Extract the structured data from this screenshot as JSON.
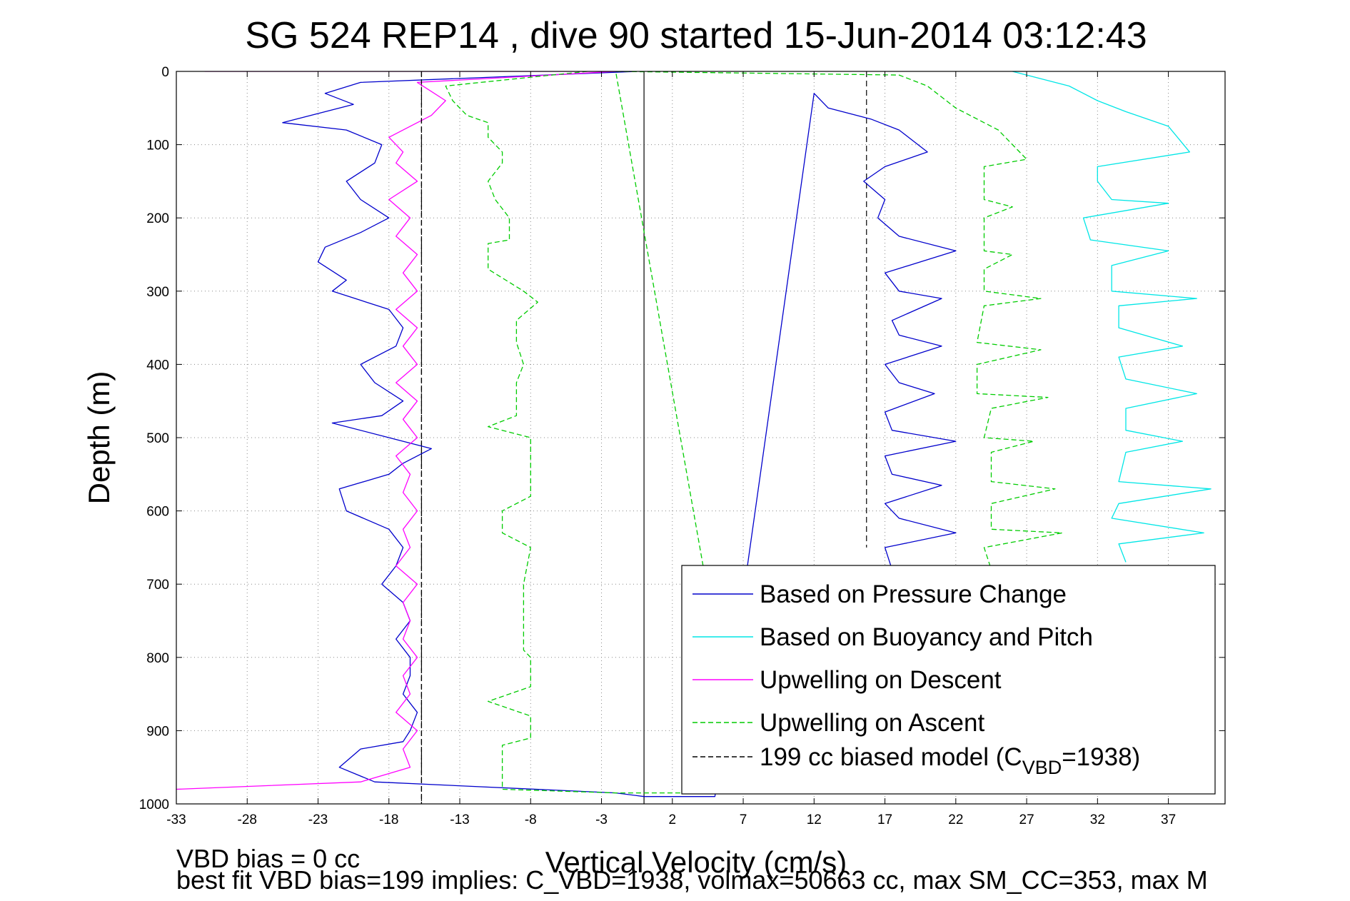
{
  "chart_data": {
    "type": "line",
    "title": "SG 524   REP14  , dive 90 started 15-Jun-2014 03:12:43",
    "xlabel": "Vertical Velocity (cm/s)",
    "ylabel": "Depth (m)",
    "xlim": [
      -33,
      41
    ],
    "ylim": [
      0,
      1000
    ],
    "y_inverted": true,
    "grid": true,
    "legend_position": "bottom-right",
    "x_ticks": [
      -33,
      -28,
      -23,
      -18,
      -13,
      -8,
      -3,
      2,
      7,
      12,
      17,
      22,
      27,
      32,
      37
    ],
    "y_ticks": [
      0,
      100,
      200,
      300,
      400,
      500,
      600,
      700,
      800,
      900,
      1000
    ],
    "reference_lines": [
      {
        "x": 0,
        "style": "solid",
        "color": "#000000"
      },
      {
        "x": -15.7,
        "style": "dashed",
        "color": "#000000"
      },
      {
        "x": 15.7,
        "style": "dashed",
        "color": "#000000",
        "depth_range": [
          0,
          650
        ]
      }
    ],
    "series": [
      {
        "name": "Based on Pressure Change",
        "color": "#0000cc",
        "style": "solid",
        "points": [
          [
            -0.5,
            0
          ],
          [
            -20,
            15
          ],
          [
            -22.5,
            30
          ],
          [
            -20.5,
            45
          ],
          [
            -25.5,
            70
          ],
          [
            -21,
            80
          ],
          [
            -18.5,
            100
          ],
          [
            -19,
            125
          ],
          [
            -21,
            150
          ],
          [
            -20,
            175
          ],
          [
            -18,
            200
          ],
          [
            -20,
            220
          ],
          [
            -22.5,
            240
          ],
          [
            -23,
            260
          ],
          [
            -21,
            285
          ],
          [
            -22,
            300
          ],
          [
            -18,
            325
          ],
          [
            -17,
            350
          ],
          [
            -17.5,
            375
          ],
          [
            -20,
            400
          ],
          [
            -19,
            425
          ],
          [
            -17,
            450
          ],
          [
            -18.5,
            470
          ],
          [
            -22,
            480
          ],
          [
            -18,
            500
          ],
          [
            -15,
            515
          ],
          [
            -17,
            535
          ],
          [
            -18,
            550
          ],
          [
            -21.5,
            570
          ],
          [
            -21,
            600
          ],
          [
            -18,
            625
          ],
          [
            -17,
            650
          ],
          [
            -17.5,
            675
          ],
          [
            -18.5,
            700
          ],
          [
            -17,
            725
          ],
          [
            -16.5,
            750
          ],
          [
            -17.5,
            775
          ],
          [
            -16.5,
            800
          ],
          [
            -16.5,
            825
          ],
          [
            -17,
            850
          ],
          [
            -16,
            875
          ],
          [
            -16.5,
            900
          ],
          [
            -17,
            915
          ],
          [
            -20,
            925
          ],
          [
            -21.5,
            950
          ],
          [
            -19,
            970
          ],
          [
            -2,
            985
          ],
          [
            0,
            990
          ],
          [
            5,
            990
          ],
          [
            12,
            30
          ],
          [
            13,
            50
          ],
          [
            16,
            65
          ],
          [
            18,
            80
          ],
          [
            20,
            110
          ],
          [
            17,
            130
          ],
          [
            15.5,
            150
          ],
          [
            17,
            175
          ],
          [
            16.5,
            200
          ],
          [
            18,
            225
          ],
          [
            22,
            245
          ],
          [
            17,
            275
          ],
          [
            18,
            300
          ],
          [
            21,
            310
          ],
          [
            17.5,
            340
          ],
          [
            18,
            360
          ],
          [
            21,
            375
          ],
          [
            17,
            400
          ],
          [
            18,
            425
          ],
          [
            20.5,
            440
          ],
          [
            17,
            465
          ],
          [
            17.5,
            490
          ],
          [
            22,
            505
          ],
          [
            17,
            525
          ],
          [
            17.5,
            550
          ],
          [
            21,
            565
          ],
          [
            17,
            590
          ],
          [
            18,
            610
          ],
          [
            22,
            630
          ],
          [
            17,
            650
          ],
          [
            17.5,
            680
          ]
        ]
      },
      {
        "name": "Based on Buoyancy and Pitch",
        "color": "#00e6e6",
        "style": "solid",
        "points": [
          [
            26,
            0
          ],
          [
            30,
            20
          ],
          [
            32,
            40
          ],
          [
            34,
            55
          ],
          [
            37,
            75
          ],
          [
            38.5,
            110
          ],
          [
            32,
            130
          ],
          [
            32,
            150
          ],
          [
            33,
            175
          ],
          [
            37,
            180
          ],
          [
            31,
            200
          ],
          [
            31.5,
            230
          ],
          [
            37,
            245
          ],
          [
            33,
            265
          ],
          [
            33,
            300
          ],
          [
            39,
            310
          ],
          [
            33.5,
            320
          ],
          [
            33.5,
            350
          ],
          [
            38,
            375
          ],
          [
            33.5,
            390
          ],
          [
            34,
            420
          ],
          [
            39,
            440
          ],
          [
            34,
            460
          ],
          [
            34,
            490
          ],
          [
            38,
            505
          ],
          [
            34,
            520
          ],
          [
            33.5,
            560
          ],
          [
            40,
            570
          ],
          [
            33.5,
            590
          ],
          [
            33,
            610
          ],
          [
            39.5,
            630
          ],
          [
            33.5,
            645
          ],
          [
            34,
            670
          ]
        ]
      },
      {
        "name": "Upwelling on Descent",
        "color": "#ff00ff",
        "style": "solid",
        "points": [
          [
            -31,
            0
          ],
          [
            -2,
            0
          ],
          [
            -16,
            15
          ],
          [
            -14,
            40
          ],
          [
            -15,
            60
          ],
          [
            -18,
            90
          ],
          [
            -17,
            110
          ],
          [
            -17.5,
            125
          ],
          [
            -16,
            150
          ],
          [
            -18,
            175
          ],
          [
            -16.5,
            200
          ],
          [
            -17.5,
            225
          ],
          [
            -16,
            250
          ],
          [
            -17,
            275
          ],
          [
            -16,
            300
          ],
          [
            -17.5,
            325
          ],
          [
            -16,
            350
          ],
          [
            -17,
            375
          ],
          [
            -16,
            400
          ],
          [
            -17.5,
            425
          ],
          [
            -16,
            450
          ],
          [
            -17,
            475
          ],
          [
            -16,
            500
          ],
          [
            -17.5,
            525
          ],
          [
            -16.5,
            550
          ],
          [
            -17,
            575
          ],
          [
            -16,
            600
          ],
          [
            -17,
            625
          ],
          [
            -16.5,
            650
          ],
          [
            -17.5,
            675
          ],
          [
            -16,
            700
          ],
          [
            -17,
            725
          ],
          [
            -16.5,
            750
          ],
          [
            -17,
            775
          ],
          [
            -16,
            800
          ],
          [
            -17,
            825
          ],
          [
            -16.5,
            850
          ],
          [
            -17.5,
            875
          ],
          [
            -16,
            900
          ],
          [
            -17,
            925
          ],
          [
            -16.5,
            950
          ],
          [
            -20,
            970
          ],
          [
            -33,
            980
          ]
        ]
      },
      {
        "name": "Upwelling on Ascent",
        "color": "#00cc00",
        "style": "dashed",
        "points": [
          [
            -4,
            0
          ],
          [
            -14,
            20
          ],
          [
            -13.5,
            40
          ],
          [
            -12.5,
            60
          ],
          [
            -11,
            70
          ],
          [
            -11,
            90
          ],
          [
            -10,
            110
          ],
          [
            -10,
            125
          ],
          [
            -11,
            150
          ],
          [
            -10.5,
            175
          ],
          [
            -9.5,
            200
          ],
          [
            -9.5,
            230
          ],
          [
            -11,
            235
          ],
          [
            -11,
            270
          ],
          [
            -8.5,
            300
          ],
          [
            -7.5,
            315
          ],
          [
            -9,
            340
          ],
          [
            -9,
            370
          ],
          [
            -8.5,
            400
          ],
          [
            -9,
            425
          ],
          [
            -9,
            470
          ],
          [
            -11,
            485
          ],
          [
            -8,
            500
          ],
          [
            -8,
            580
          ],
          [
            -10,
            600
          ],
          [
            -10,
            630
          ],
          [
            -8,
            650
          ],
          [
            -8.5,
            700
          ],
          [
            -8.5,
            790
          ],
          [
            -8,
            800
          ],
          [
            -8,
            840
          ],
          [
            -11,
            860
          ],
          [
            -8,
            880
          ],
          [
            -8,
            910
          ],
          [
            -10,
            920
          ],
          [
            -10,
            980
          ],
          [
            -2,
            985
          ],
          [
            7,
            985
          ],
          [
            -2,
            0
          ],
          [
            18,
            5
          ],
          [
            20,
            20
          ],
          [
            22,
            50
          ],
          [
            25,
            80
          ],
          [
            26,
            100
          ],
          [
            27,
            120
          ],
          [
            24,
            130
          ],
          [
            24,
            175
          ],
          [
            26,
            185
          ],
          [
            24,
            200
          ],
          [
            24,
            245
          ],
          [
            26,
            250
          ],
          [
            24,
            270
          ],
          [
            24,
            300
          ],
          [
            28,
            310
          ],
          [
            24,
            320
          ],
          [
            23.5,
            370
          ],
          [
            28,
            380
          ],
          [
            23.5,
            400
          ],
          [
            23.5,
            440
          ],
          [
            28.5,
            445
          ],
          [
            24.5,
            460
          ],
          [
            24,
            500
          ],
          [
            27.5,
            505
          ],
          [
            24.5,
            520
          ],
          [
            24.5,
            560
          ],
          [
            29,
            570
          ],
          [
            24.5,
            590
          ],
          [
            24.5,
            625
          ],
          [
            29.5,
            630
          ],
          [
            24,
            650
          ],
          [
            24.5,
            680
          ]
        ]
      },
      {
        "name": "199 cc biased model (C_VBD=1938)",
        "color": "#000000",
        "style": "dashed",
        "points": [
          [
            -15.7,
            0
          ],
          [
            -15.7,
            1000
          ]
        ]
      }
    ]
  },
  "legend": {
    "entries": [
      {
        "label": "Based on Pressure Change",
        "color": "#0000cc",
        "style": "solid"
      },
      {
        "label": "Based on Buoyancy and Pitch",
        "color": "#00e6e6",
        "style": "solid"
      },
      {
        "label": "Upwelling on Descent",
        "color": "#ff00ff",
        "style": "solid"
      },
      {
        "label": "Upwelling on Ascent",
        "color": "#00cc00",
        "style": "dashed"
      },
      {
        "label_prefix": "199 cc biased model (C",
        "label_sub": "VBD",
        "label_suffix": "=1938)",
        "color": "#000000",
        "style": "dashed"
      }
    ]
  },
  "notes": {
    "line1": "VBD bias = 0 cc",
    "line2": "best fit VBD bias=199 implies: C_VBD=1938, volmax=50663 cc, max SM_CC=353, max M"
  }
}
